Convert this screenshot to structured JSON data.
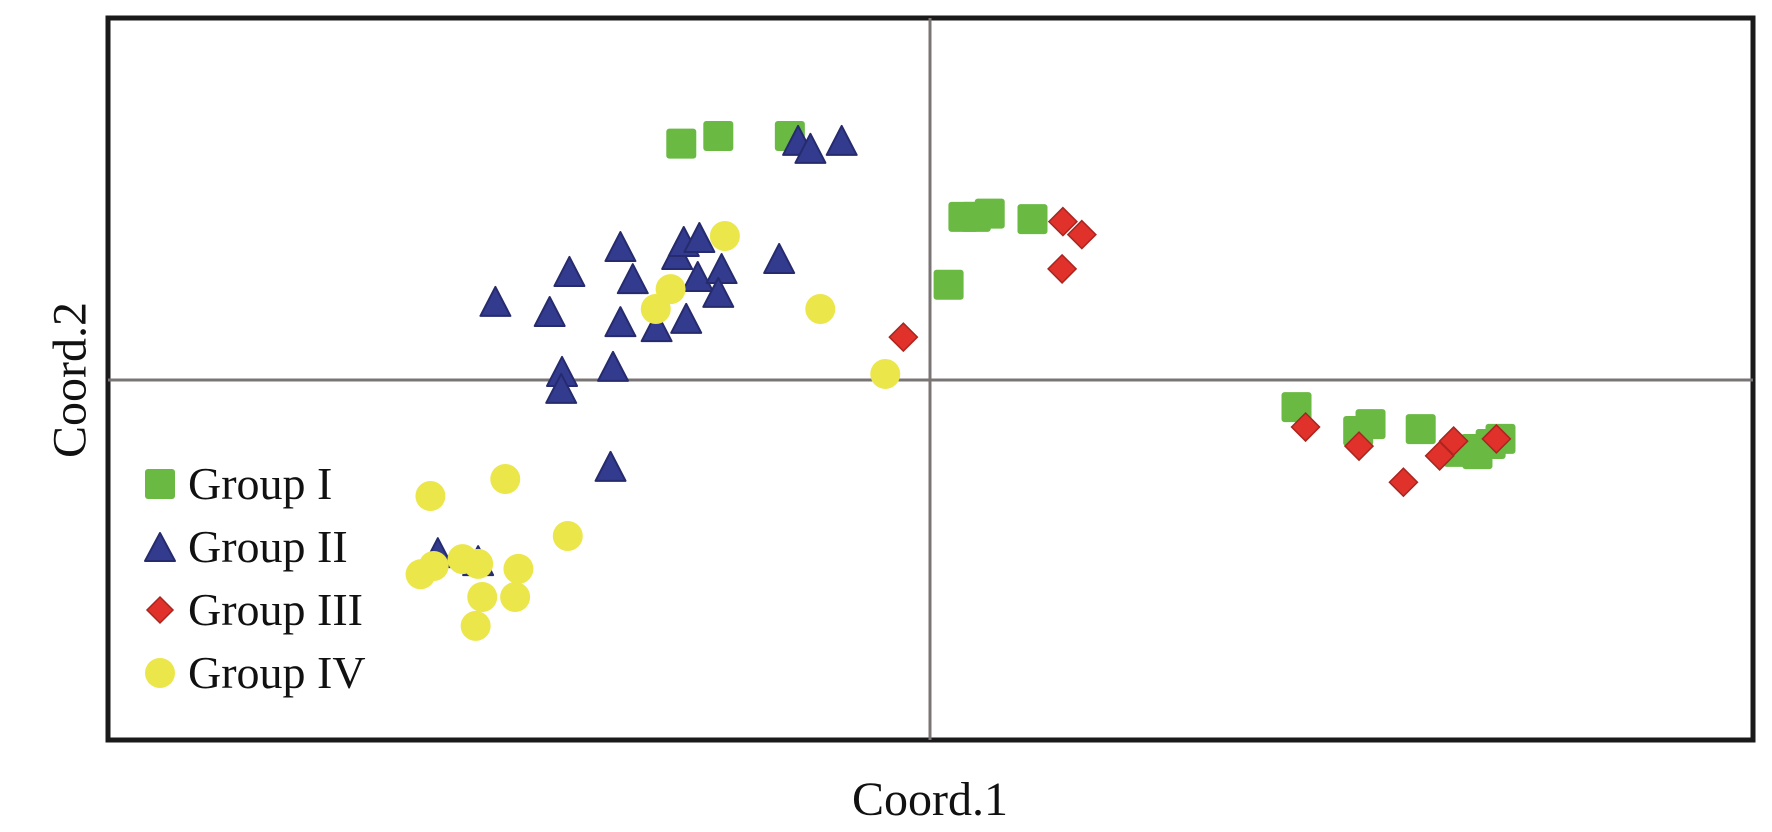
{
  "chart_data": {
    "type": "scatter",
    "title": "",
    "xlabel": "Coord.1",
    "ylabel": "Coord.2",
    "xlim": [
      -1,
      1
    ],
    "ylim": [
      -1,
      1
    ],
    "grid": false,
    "legend_position": "bottom-left",
    "colors": {
      "Group I": "#6ab943",
      "Group II": "#333b8f",
      "Group III": "#e0312a",
      "Group IV": "#ebe64a"
    },
    "series": [
      {
        "name": "Group I",
        "marker": "square",
        "points": [
          [
            -0.303,
            0.652
          ],
          [
            -0.258,
            0.673
          ],
          [
            -0.171,
            0.673
          ],
          [
            0.04,
            0.449
          ],
          [
            0.055,
            0.449
          ],
          [
            0.072,
            0.458
          ],
          [
            0.124,
            0.443
          ],
          [
            0.022,
            0.261
          ],
          [
            0.445,
            -0.078
          ],
          [
            0.52,
            -0.144
          ],
          [
            0.535,
            -0.125
          ],
          [
            0.596,
            -0.139
          ],
          [
            0.642,
            -0.202
          ],
          [
            0.663,
            -0.194
          ],
          [
            0.681,
            -0.18
          ],
          [
            0.693,
            -0.166
          ],
          [
            0.665,
            -0.208
          ]
        ]
      },
      {
        "name": "Group II",
        "marker": "triangle",
        "points": [
          [
            -0.529,
            0.208
          ],
          [
            -0.439,
            0.291
          ],
          [
            -0.463,
            0.18
          ],
          [
            -0.377,
            0.36
          ],
          [
            -0.362,
            0.271
          ],
          [
            -0.377,
            0.152
          ],
          [
            -0.333,
            0.138
          ],
          [
            -0.308,
            0.338
          ],
          [
            -0.3,
            0.374
          ],
          [
            -0.281,
            0.385
          ],
          [
            -0.283,
            0.277
          ],
          [
            -0.254,
            0.299
          ],
          [
            -0.258,
            0.233
          ],
          [
            -0.297,
            0.161
          ],
          [
            -0.184,
            0.327
          ],
          [
            -0.161,
            0.654
          ],
          [
            -0.146,
            0.632
          ],
          [
            -0.108,
            0.654
          ],
          [
            -0.448,
            0.014
          ],
          [
            -0.449,
            -0.033
          ],
          [
            -0.386,
            0.028
          ],
          [
            -0.389,
            -0.249
          ],
          [
            -0.599,
            -0.488
          ],
          [
            -0.55,
            -0.51
          ]
        ]
      },
      {
        "name": "Group III",
        "marker": "diamond",
        "points": [
          [
            -0.033,
            0.116
          ],
          [
            0.161,
            0.436
          ],
          [
            0.184,
            0.4
          ],
          [
            0.16,
            0.305
          ],
          [
            0.456,
            -0.133
          ],
          [
            0.521,
            -0.186
          ],
          [
            0.575,
            -0.286
          ],
          [
            0.619,
            -0.213
          ],
          [
            0.636,
            -0.172
          ],
          [
            0.688,
            -0.166
          ]
        ]
      },
      {
        "name": "Group IV",
        "marker": "circle",
        "points": [
          [
            -0.25,
            0.396
          ],
          [
            -0.316,
            0.249
          ],
          [
            -0.334,
            0.194
          ],
          [
            -0.134,
            0.194
          ],
          [
            -0.055,
            0.014
          ],
          [
            -0.608,
            -0.324
          ],
          [
            -0.517,
            -0.277
          ],
          [
            -0.441,
            -0.435
          ],
          [
            -0.62,
            -0.541
          ],
          [
            -0.604,
            -0.518
          ],
          [
            -0.569,
            -0.499
          ],
          [
            -0.55,
            -0.512
          ],
          [
            -0.501,
            -0.526
          ],
          [
            -0.505,
            -0.604
          ],
          [
            -0.545,
            -0.604
          ],
          [
            -0.553,
            -0.684
          ]
        ]
      }
    ]
  }
}
